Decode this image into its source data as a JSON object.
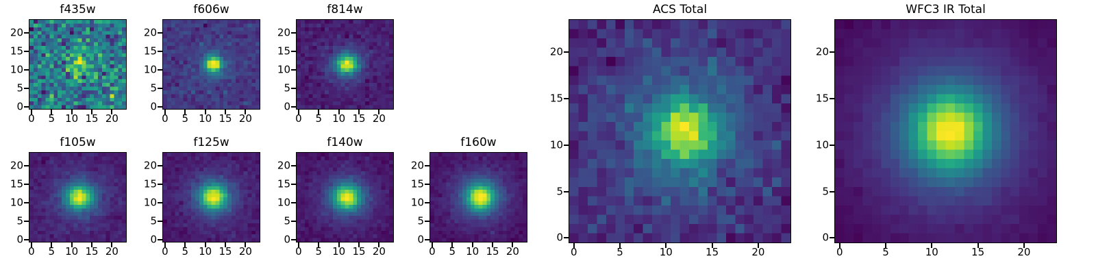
{
  "figure": {
    "background": "#ffffff",
    "axes_color": "#000000"
  },
  "chart_data": {
    "type": "heatmap",
    "colormap": "viridis",
    "description": "Grid of HST filter cutout stamps of a single source plus ACS and WFC3 IR stacked totals, rendered as pixelated image heatmaps with a bright central source",
    "axis": {
      "range": [
        0,
        24
      ],
      "xticks": [
        0,
        5,
        10,
        15,
        20
      ],
      "yticks": [
        0,
        5,
        10,
        15,
        20
      ]
    },
    "panels": [
      {
        "name": "f435w",
        "title": "f435w",
        "grid_size": 24,
        "center": [
          12,
          11.5
        ],
        "noise": 0.35,
        "seed": 101,
        "components": [
          {
            "amp": 0.8,
            "sigma": 1.7
          },
          {
            "amp": 0.3,
            "sigma": 3.5
          }
        ]
      },
      {
        "name": "f606w",
        "title": "f606w",
        "grid_size": 24,
        "center": [
          12,
          11.5
        ],
        "noise": 0.06,
        "seed": 102,
        "components": [
          {
            "amp": 1.0,
            "sigma": 1.4
          },
          {
            "amp": 0.22,
            "sigma": 3.2
          }
        ]
      },
      {
        "name": "f814w",
        "title": "f814w",
        "grid_size": 24,
        "center": [
          12,
          11.5
        ],
        "noise": 0.05,
        "seed": 103,
        "components": [
          {
            "amp": 1.0,
            "sigma": 1.8
          },
          {
            "amp": 0.26,
            "sigma": 4.0
          }
        ]
      },
      {
        "name": "f105w",
        "title": "f105w",
        "grid_size": 24,
        "center": [
          12,
          11.5
        ],
        "noise": 0.04,
        "seed": 104,
        "components": [
          {
            "amp": 1.0,
            "sigma": 2.2
          },
          {
            "amp": 0.3,
            "sigma": 5.0
          }
        ]
      },
      {
        "name": "f125w",
        "title": "f125w",
        "grid_size": 24,
        "center": [
          12,
          11.5
        ],
        "noise": 0.038,
        "seed": 105,
        "components": [
          {
            "amp": 1.0,
            "sigma": 2.3
          },
          {
            "amp": 0.3,
            "sigma": 5.2
          }
        ]
      },
      {
        "name": "f140w",
        "title": "f140w",
        "grid_size": 24,
        "center": [
          12,
          11.5
        ],
        "noise": 0.034,
        "seed": 106,
        "components": [
          {
            "amp": 1.0,
            "sigma": 2.3
          },
          {
            "amp": 0.32,
            "sigma": 5.2
          }
        ]
      },
      {
        "name": "f160w",
        "title": "f160w",
        "grid_size": 24,
        "center": [
          12,
          11.5
        ],
        "noise": 0.03,
        "seed": 107,
        "components": [
          {
            "amp": 1.0,
            "sigma": 2.4
          },
          {
            "amp": 0.33,
            "sigma": 5.4
          }
        ]
      },
      {
        "name": "acs-total",
        "title": "ACS Total",
        "grid_size": 24,
        "center": [
          12,
          11.5
        ],
        "noise": 0.085,
        "seed": 108,
        "components": [
          {
            "amp": 0.9,
            "sigma": 2.1
          },
          {
            "amp": 0.3,
            "sigma": 4.5
          },
          {
            "amp": 0.22,
            "sigma": 9.0
          }
        ]
      },
      {
        "name": "wfc3-ir-total",
        "title": "WFC3 IR Total",
        "grid_size": 24,
        "center": [
          12,
          11.5
        ],
        "noise": 0.018,
        "seed": 109,
        "components": [
          {
            "amp": 1.0,
            "sigma": 2.7
          },
          {
            "amp": 0.38,
            "sigma": 5.5
          },
          {
            "amp": 0.2,
            "sigma": 11.0
          }
        ]
      }
    ]
  }
}
